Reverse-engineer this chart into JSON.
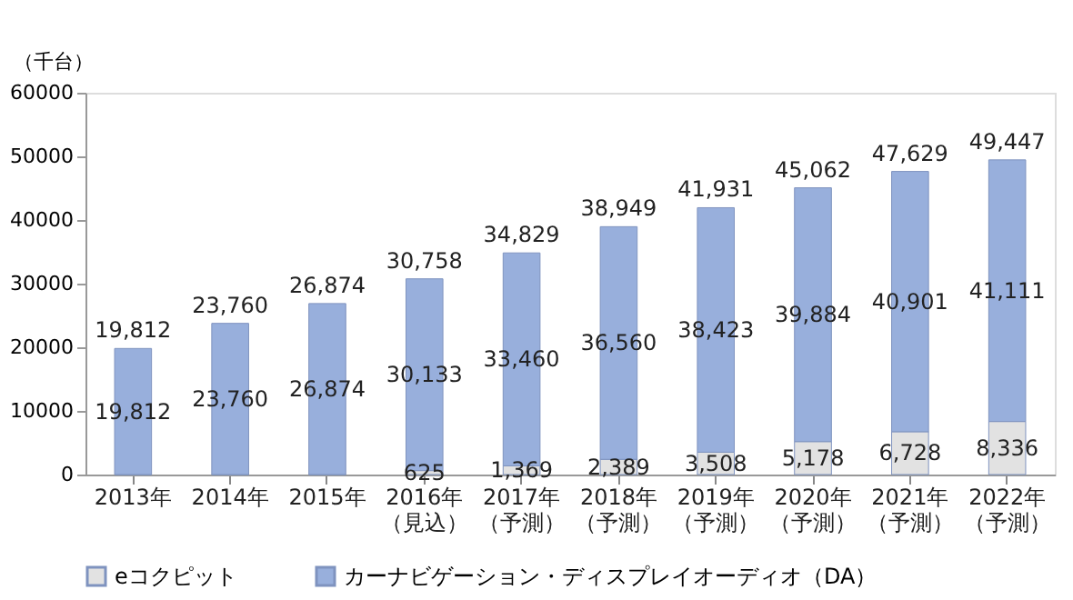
{
  "chart_data": {
    "type": "bar",
    "stacked": true,
    "ylabel": "（千台）",
    "categories": [
      "2013年",
      "2014年",
      "2015年",
      "2016年（見込）",
      "2017年（予測）",
      "2018年（予測）",
      "2019年（予測）",
      "2020年（予測）",
      "2021年（予測）",
      "2022年（予測）"
    ],
    "series": [
      {
        "name": "eコクピット",
        "color": "#e2e2e2",
        "values": [
          0,
          0,
          0,
          625,
          1369,
          2389,
          3508,
          5178,
          6728,
          8336
        ],
        "value_labels": [
          null,
          null,
          null,
          "625",
          "1,369",
          "2,389",
          "3,508",
          "5,178",
          "6,728",
          "8,336"
        ]
      },
      {
        "name": "カーナビゲーション・ディスプレイオーディオ（DA）",
        "color": "#98afdc",
        "values": [
          19812,
          23760,
          26874,
          30133,
          33460,
          36560,
          38423,
          39884,
          40901,
          41111
        ],
        "value_labels": [
          "19,812",
          "23,760",
          "26,874",
          "30,133",
          "33,460",
          "36,560",
          "38,423",
          "39,884",
          "40,901",
          "41,111"
        ]
      }
    ],
    "totals": [
      "19,812",
      "23,760",
      "26,874",
      "30,758",
      "34,829",
      "38,949",
      "41,931",
      "45,062",
      "47,629",
      "49,447"
    ],
    "ylim": [
      0,
      60000
    ],
    "yticks": [
      0,
      10000,
      20000,
      30000,
      40000,
      50000,
      60000
    ],
    "grid": false,
    "legend": "bottom"
  }
}
